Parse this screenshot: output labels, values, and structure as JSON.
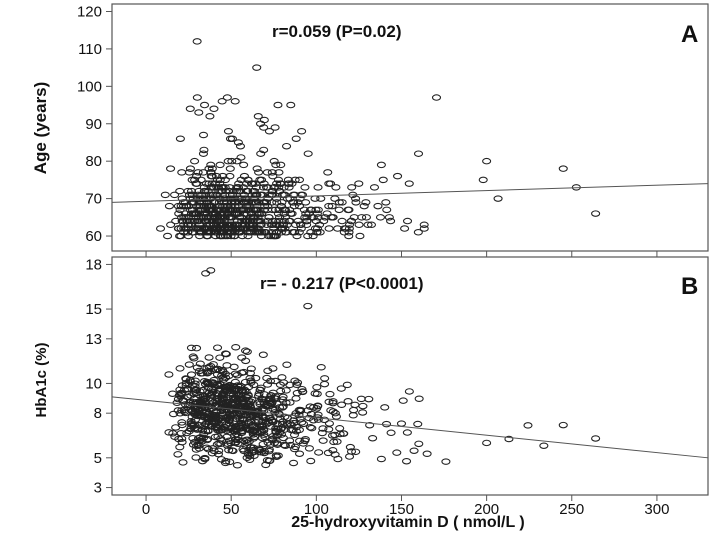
{
  "chart_data": [
    {
      "type": "scatter",
      "panel_label": "A",
      "annotation": "r=0.059 (P=0.02)",
      "ylabel": "Age (years)",
      "xlabel": "",
      "xlim": [
        -20,
        330
      ],
      "ylim": [
        56,
        122
      ],
      "x_ticks": [
        0,
        50,
        100,
        150,
        200,
        250,
        300
      ],
      "y_ticks": [
        60,
        70,
        80,
        90,
        100,
        110,
        120
      ],
      "y_tick_labels": [
        "60",
        "70",
        "80",
        "90",
        "100",
        "110",
        "120"
      ],
      "fit_line": {
        "x": [
          -20,
          330
        ],
        "y": [
          69.0,
          74.0
        ]
      },
      "grid": false
    },
    {
      "type": "scatter",
      "panel_label": "B",
      "annotation": "r= - 0.217 (P<0.0001)",
      "ylabel": "HbA1c (%)",
      "xlabel": "25-hydroxyvitamin D ( nmol/L )",
      "xlim": [
        -20,
        330
      ],
      "ylim": [
        2.5,
        18.5
      ],
      "x_ticks": [
        0,
        50,
        100,
        150,
        200,
        250,
        300
      ],
      "x_tick_labels": [
        "0",
        "50",
        "100",
        "150",
        "200",
        "250",
        "300"
      ],
      "y_ticks": [
        3,
        5,
        8,
        10,
        13,
        15,
        18
      ],
      "y_tick_labels": [
        "3",
        "5",
        "8",
        "10",
        "13",
        "15",
        "18"
      ],
      "fit_line": {
        "x": [
          -20,
          330
        ],
        "y": [
          9.1,
          5.0
        ]
      },
      "grid": false
    }
  ]
}
